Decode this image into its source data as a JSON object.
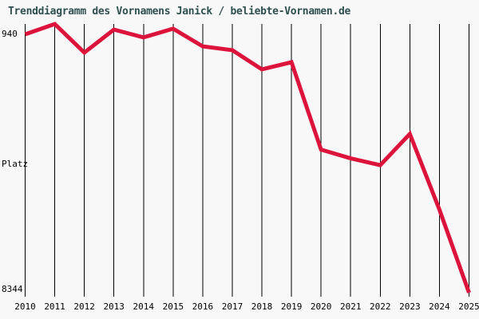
{
  "title": "Trenddiagramm des Vornamens Janick / beliebte-Vornamen.de",
  "colors": {
    "background": "#f8f8f8",
    "title_text": "#2f4f4f",
    "grid": "#000000",
    "line": "#dc143c",
    "tick_text": "#000000"
  },
  "y_axis": {
    "start_label": "940",
    "title": "Platz",
    "end_label": "8344"
  },
  "chart_data": {
    "type": "line",
    "title": "Trenddiagramm des Vornamens Janick / beliebte-Vornamen.de",
    "x": [
      2010,
      2011,
      2012,
      2013,
      2014,
      2015,
      2016,
      2017,
      2018,
      2019,
      2020,
      2021,
      2022,
      2023,
      2024,
      2025
    ],
    "values": [
      940,
      645,
      1465,
      805,
      1030,
      780,
      1285,
      1395,
      1945,
      1740,
      4245,
      4495,
      4690,
      3795,
      5965,
      8344
    ],
    "ylabel": "Platz",
    "ylim": [
      940,
      8344
    ],
    "y_inverted": true,
    "grid": "vertical-only",
    "legend": false,
    "line_color": "#dc143c"
  }
}
